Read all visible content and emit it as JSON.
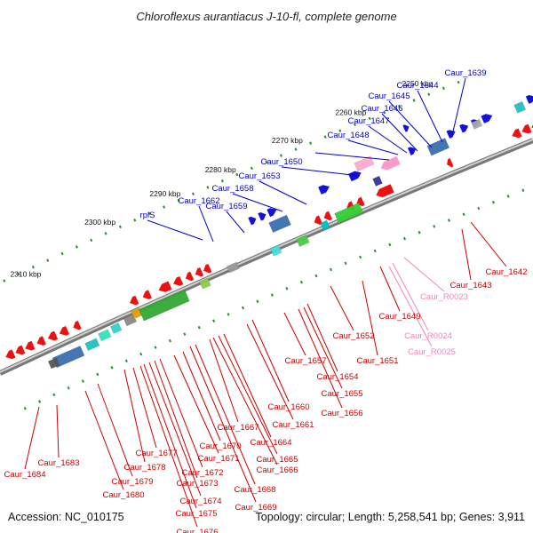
{
  "title": "Chloroflexus aurantiacus J-10-fl, complete genome",
  "footer": {
    "accession": "Accession: NC_010175",
    "summary": "Topology: circular; Length: 5,258,541 bp; Genes: 3,911"
  },
  "colors": {
    "forward_label": "#0000cc",
    "reverse_label": "#cc0000",
    "rna_label": "#ee88bb",
    "backbone_dark": "#777777",
    "backbone_light": "#cfcfcf",
    "tick_dot": "#2e8b2e",
    "gene_red": "#ee1111",
    "gene_blue": "#1111dd"
  },
  "ruler": {
    "ticks": [
      "2250 kbp",
      "2260 kbp",
      "2270 kbp",
      "2280 kbp",
      "2290 kbp",
      "2300 kbp",
      "2310 kbp"
    ]
  },
  "labels": {
    "forward": [
      "Caur_1639",
      "Caur_1644",
      "Caur_1645",
      "Caur_1646",
      "Caur_1647",
      "Caur_1648",
      "Caur_1650",
      "Caur_1653",
      "Caur_1658",
      "Caur_1659",
      "Caur_1662",
      "rplS"
    ],
    "reverse": [
      "Caur_1642",
      "Caur_1643",
      "Caur_1649",
      "Caur_1651",
      "Caur_1652",
      "Caur_1654",
      "Caur_1655",
      "Caur_1656",
      "Caur_1657",
      "Caur_1660",
      "Caur_1661",
      "Caur_1664",
      "Caur_1665",
      "Caur_1666",
      "Caur_1667",
      "Caur_1668",
      "Caur_1669",
      "Caur_1670",
      "Caur_1671",
      "Caur_1672",
      "Caur_1673",
      "Caur_1674",
      "Caur_1675",
      "Caur_1676",
      "Caur_1677",
      "Caur_1678",
      "Caur_1679",
      "Caur_1680",
      "Caur_1683",
      "Caur_1684"
    ],
    "rna": [
      "Caur_R0023",
      "Caur_R0024",
      "Caur_R0025"
    ]
  }
}
